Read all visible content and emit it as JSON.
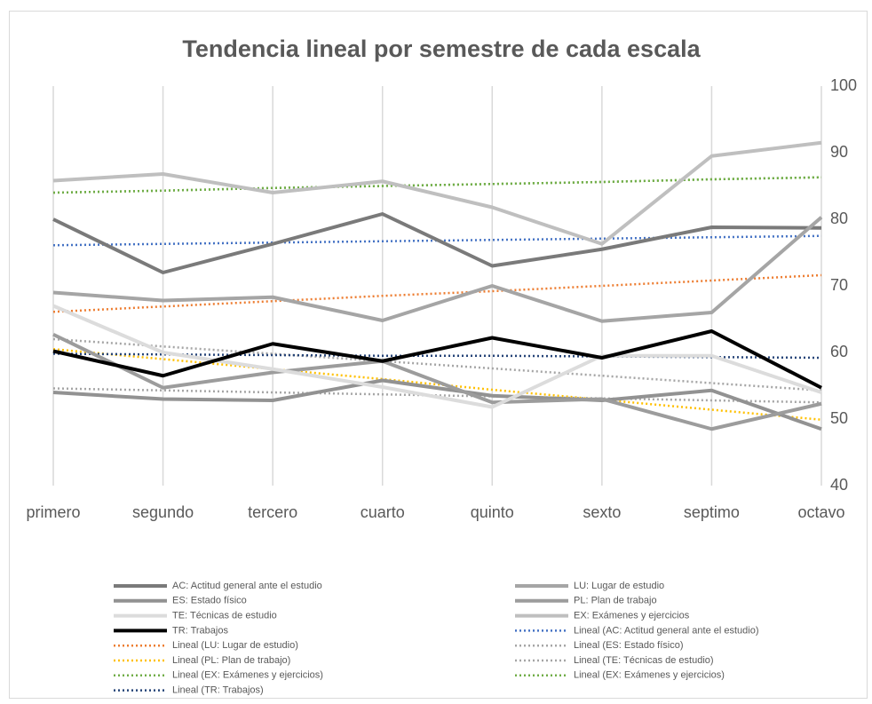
{
  "chart_data": {
    "type": "line",
    "title": "Tendencia lineal  por semestre  de cada escala",
    "categories": [
      "primero",
      "segundo",
      "tercero",
      "cuarto",
      "quinto",
      "sexto",
      "septimo",
      "octavo"
    ],
    "ylim": [
      40,
      100
    ],
    "yticks": [
      40,
      50,
      60,
      70,
      80,
      90,
      100
    ],
    "y_axis_side": "right",
    "grid": "vertical",
    "legend": "bottom",
    "series": [
      {
        "name": "AC: Actitud general ante el estudio",
        "color": "#7a7a7a",
        "style": "solid",
        "values": [
          80,
          72,
          76.3,
          80.8,
          73,
          75.5,
          78.8,
          78.7
        ]
      },
      {
        "name": "LU: Lugar de estudio",
        "color": "#a5a5a5",
        "style": "solid",
        "values": [
          69,
          67.8,
          68.3,
          64.8,
          70,
          64.7,
          66,
          80.3
        ]
      },
      {
        "name": "ES: Estado físico",
        "color": "#929292",
        "style": "solid",
        "values": [
          54,
          53,
          52.8,
          55.8,
          53.5,
          52.8,
          54.3,
          48.5
        ]
      },
      {
        "name": "PL: Plan de trabajo",
        "color": "#9c9c9c",
        "style": "solid",
        "values": [
          62.7,
          54.7,
          57,
          58.7,
          52.5,
          53,
          48.5,
          52.3
        ]
      },
      {
        "name": "TE: Técnicas de estudio",
        "color": "#dcdcdc",
        "style": "solid",
        "values": [
          67,
          60,
          57.5,
          54.8,
          51.8,
          59.5,
          59.5,
          54
        ]
      },
      {
        "name": "EX: Exámenes y ejercicios",
        "color": "#bfbfbf",
        "style": "solid",
        "values": [
          85.8,
          86.8,
          84,
          85.7,
          81.8,
          76.3,
          89.5,
          91.5
        ]
      },
      {
        "name": "TR: Trabajos",
        "color": "#000000",
        "style": "solid",
        "values": [
          60.2,
          56.5,
          61.3,
          58.7,
          62.2,
          59.2,
          63.2,
          54.7
        ]
      },
      {
        "name": "Lineal (AC: Actitud general ante el estudio)",
        "color": "#4472c4",
        "style": "dotted",
        "values": [
          76.1,
          76.3,
          76.5,
          76.7,
          76.9,
          77.1,
          77.3,
          77.5
        ]
      },
      {
        "name": "Lineal (LU: Lugar de estudio)",
        "color": "#ed7d31",
        "style": "dotted",
        "values": [
          66.1,
          66.9,
          67.7,
          68.5,
          69.2,
          70,
          70.8,
          71.6
        ]
      },
      {
        "name": "Lineal (ES: Estado físico)",
        "color": "#a5a5a5",
        "style": "dotted",
        "values": [
          54.6,
          54.3,
          54,
          53.7,
          53.4,
          53.1,
          52.8,
          52.5
        ]
      },
      {
        "name": "Lineal (PL: Plan de trabajo)",
        "color": "#ffc000",
        "style": "dotted",
        "values": [
          60.5,
          59,
          57.5,
          56,
          54.4,
          52.9,
          51.4,
          49.9
        ]
      },
      {
        "name": "Lineal (TE: Técnicas de estudio)",
        "color": "#a5a5a5",
        "style": "dotted",
        "values": [
          62,
          60.9,
          59.8,
          58.7,
          57.6,
          56.5,
          55.4,
          54.3
        ]
      },
      {
        "name": "Lineal (EX: Exámenes y ejercicios)",
        "color": "#70ad47",
        "style": "dotted",
        "values": [
          84,
          84.3,
          84.7,
          85,
          85.3,
          85.6,
          86,
          86.3
        ]
      },
      {
        "name": "Lineal (EX: Exámenes y ejercicios)",
        "color": "#70ad47",
        "style": "dotted",
        "values": [
          84,
          84.3,
          84.7,
          85,
          85.3,
          85.6,
          86,
          86.3
        ]
      },
      {
        "name": "Lineal (TR: Trabajos)",
        "color": "#264478",
        "style": "dotted",
        "values": [
          59.8,
          59.7,
          59.6,
          59.5,
          59.5,
          59.4,
          59.3,
          59.2
        ]
      }
    ]
  }
}
